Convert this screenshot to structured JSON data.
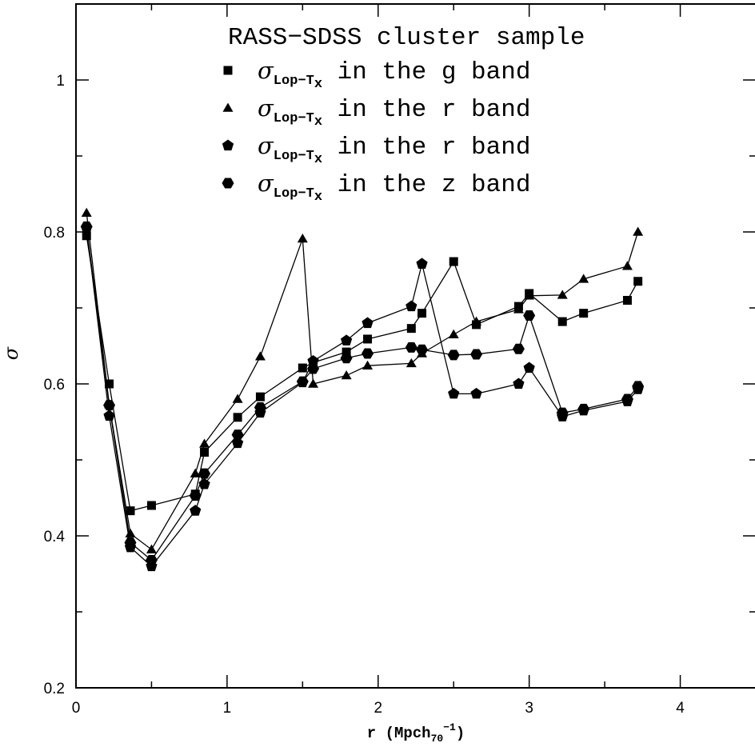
{
  "chart_data": {
    "type": "line",
    "title": "RASS−SDSS cluster sample",
    "xlabel": "r (Mpch",
    "xlabel_sub": "70",
    "xlabel_sup": "−1",
    "xlabel_close": ")",
    "ylabel": "σ",
    "xlim": [
      0,
      4.5
    ],
    "ylim": [
      0.2,
      1.1
    ],
    "xticks": [
      0,
      1,
      2,
      3,
      4
    ],
    "yticks": [
      0.2,
      0.4,
      0.6,
      0.8,
      1.0
    ],
    "xtick_labels": [
      "0",
      "1",
      "2",
      "3",
      "4"
    ],
    "ytick_labels": [
      "0.2",
      "0.4",
      "0.6",
      "0.8",
      "1"
    ],
    "grid": false,
    "legend_position": "top-center",
    "series": [
      {
        "name": "σ",
        "name_sub": "Lop−T",
        "name_subsub": "x",
        "name_rest": " in the g band",
        "marker": "square",
        "x": [
          0.07,
          0.22,
          0.36,
          0.5,
          0.79,
          0.85,
          1.07,
          1.22,
          1.5,
          1.57,
          1.79,
          1.93,
          2.22,
          2.29,
          2.5,
          2.65,
          2.93,
          3.0,
          3.22,
          3.36,
          3.65,
          3.72
        ],
        "y": [
          0.795,
          0.6,
          0.433,
          0.44,
          0.455,
          0.51,
          0.556,
          0.583,
          0.621,
          0.628,
          0.642,
          0.659,
          0.673,
          0.693,
          0.761,
          0.678,
          0.702,
          0.719,
          0.682,
          0.693,
          0.71,
          0.735
        ]
      },
      {
        "name": "σ",
        "name_sub": "Lop−T",
        "name_subsub": "x",
        "name_rest": " in the r band",
        "marker": "triangle",
        "x": [
          0.07,
          0.22,
          0.36,
          0.5,
          0.79,
          0.85,
          1.07,
          1.22,
          1.5,
          1.57,
          1.79,
          1.93,
          2.22,
          2.29,
          2.5,
          2.65,
          2.93,
          3.0,
          3.22,
          3.36,
          3.65,
          3.72
        ],
        "y": [
          0.825,
          0.573,
          0.403,
          0.382,
          0.482,
          0.521,
          0.58,
          0.636,
          0.791,
          0.6,
          0.611,
          0.624,
          0.627,
          0.64,
          0.665,
          0.682,
          0.698,
          0.716,
          0.717,
          0.738,
          0.755,
          0.8
        ]
      },
      {
        "name": "σ",
        "name_sub": "Lop−T",
        "name_subsub": "x",
        "name_rest": " in the r band",
        "marker": "pentagon",
        "x": [
          0.07,
          0.22,
          0.36,
          0.5,
          0.79,
          0.85,
          1.07,
          1.22,
          1.5,
          1.57,
          1.79,
          1.93,
          2.22,
          2.29,
          2.5,
          2.65,
          2.93,
          3.0,
          3.22,
          3.36,
          3.65,
          3.72
        ],
        "y": [
          0.805,
          0.558,
          0.385,
          0.36,
          0.433,
          0.468,
          0.522,
          0.562,
          0.602,
          0.63,
          0.657,
          0.68,
          0.702,
          0.758,
          0.587,
          0.587,
          0.6,
          0.621,
          0.557,
          0.565,
          0.577,
          0.593
        ]
      },
      {
        "name": "σ",
        "name_sub": "Lop−T",
        "name_subsub": "x",
        "name_rest": " in the z band",
        "marker": "hexagon",
        "x": [
          0.07,
          0.22,
          0.36,
          0.5,
          0.79,
          0.85,
          1.07,
          1.22,
          1.5,
          1.57,
          1.79,
          1.93,
          2.22,
          2.29,
          2.5,
          2.65,
          2.93,
          3.0,
          3.22,
          3.36,
          3.65,
          3.72
        ],
        "y": [
          0.807,
          0.572,
          0.391,
          0.368,
          0.453,
          0.482,
          0.533,
          0.569,
          0.603,
          0.62,
          0.634,
          0.64,
          0.648,
          0.645,
          0.638,
          0.639,
          0.646,
          0.69,
          0.562,
          0.567,
          0.58,
          0.597
        ]
      }
    ]
  }
}
